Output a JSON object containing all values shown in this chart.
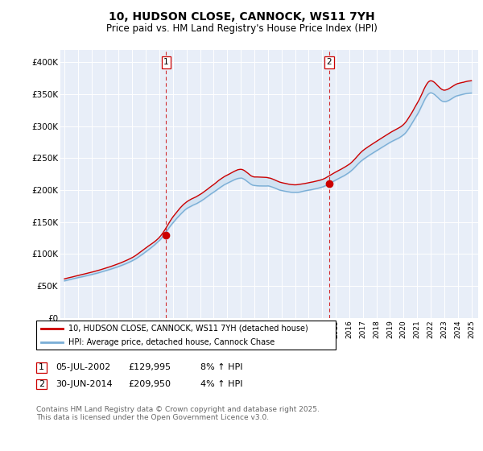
{
  "title": "10, HUDSON CLOSE, CANNOCK, WS11 7YH",
  "subtitle": "Price paid vs. HM Land Registry's House Price Index (HPI)",
  "ylabel_ticks": [
    "£0",
    "£50K",
    "£100K",
    "£150K",
    "£200K",
    "£250K",
    "£300K",
    "£350K",
    "£400K"
  ],
  "ytick_values": [
    0,
    50000,
    100000,
    150000,
    200000,
    250000,
    300000,
    350000,
    400000
  ],
  "ylim": [
    0,
    420000
  ],
  "legend_line1": "10, HUDSON CLOSE, CANNOCK, WS11 7YH (detached house)",
  "legend_line2": "HPI: Average price, detached house, Cannock Chase",
  "annotation1_date": "05-JUL-2002",
  "annotation1_price": "£129,995",
  "annotation1_hpi": "8% ↑ HPI",
  "annotation2_date": "30-JUN-2014",
  "annotation2_price": "£209,950",
  "annotation2_hpi": "4% ↑ HPI",
  "footer": "Contains HM Land Registry data © Crown copyright and database right 2025.\nThis data is licensed under the Open Government Licence v3.0.",
  "sale1_year": 2002.5,
  "sale1_price": 129995,
  "sale2_year": 2014.5,
  "sale2_price": 209950,
  "red_color": "#cc0000",
  "blue_color": "#7aaed6",
  "fill_color": "#c8ddf0",
  "vline_color": "#cc0000",
  "background_color": "#e8eef8",
  "grid_color": "#ffffff",
  "outer_bg": "#ffffff"
}
